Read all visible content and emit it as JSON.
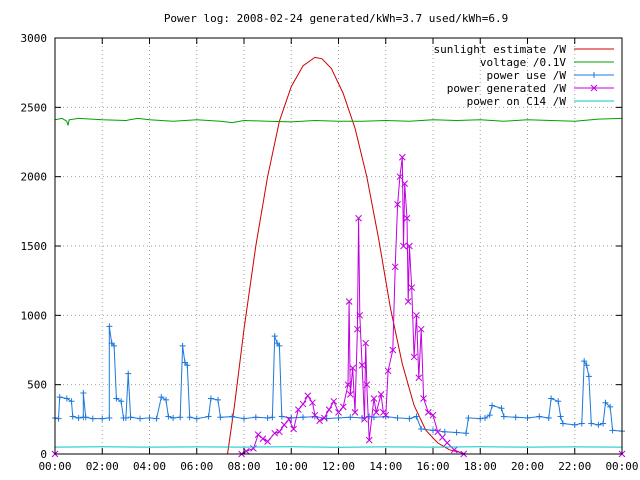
{
  "chart_data": {
    "type": "line",
    "title": "Power log: 2008-02-24 generated/kWh=3.7 used/kWh=6.9",
    "xlabel": "",
    "ylabel": "",
    "x_range_hours": [
      0,
      24
    ],
    "ylim": [
      0,
      3000
    ],
    "x_tick_labels": [
      "00:00",
      "02:00",
      "04:00",
      "06:00",
      "08:00",
      "10:00",
      "12:00",
      "14:00",
      "16:00",
      "18:00",
      "20:00",
      "22:00",
      "00:00"
    ],
    "y_ticks": [
      0,
      500,
      1000,
      1500,
      2000,
      2500,
      3000
    ],
    "grid": true,
    "legend_position": "top-right",
    "series": [
      {
        "name": "sunlight estimate /W",
        "color": "#cc0000",
        "style": "line",
        "points": [
          [
            7.3,
            0
          ],
          [
            7.6,
            350
          ],
          [
            8.0,
            900
          ],
          [
            8.5,
            1500
          ],
          [
            9.0,
            2000
          ],
          [
            9.5,
            2400
          ],
          [
            10.0,
            2650
          ],
          [
            10.5,
            2800
          ],
          [
            11.0,
            2860
          ],
          [
            11.3,
            2850
          ],
          [
            11.7,
            2780
          ],
          [
            12.2,
            2600
          ],
          [
            12.7,
            2350
          ],
          [
            13.2,
            2000
          ],
          [
            13.7,
            1550
          ],
          [
            14.2,
            1050
          ],
          [
            14.7,
            650
          ],
          [
            15.2,
            350
          ],
          [
            15.7,
            170
          ],
          [
            16.2,
            80
          ],
          [
            16.7,
            30
          ],
          [
            17.3,
            5
          ]
        ]
      },
      {
        "name": "voltage /0.1V",
        "color": "#00a000",
        "style": "line",
        "points": [
          [
            0,
            2410
          ],
          [
            0.3,
            2420
          ],
          [
            0.5,
            2400
          ],
          [
            0.55,
            2370
          ],
          [
            0.6,
            2410
          ],
          [
            1,
            2420
          ],
          [
            2,
            2410
          ],
          [
            3,
            2405
          ],
          [
            3.5,
            2420
          ],
          [
            4,
            2410
          ],
          [
            5,
            2400
          ],
          [
            6,
            2410
          ],
          [
            7,
            2400
          ],
          [
            7.5,
            2390
          ],
          [
            8,
            2405
          ],
          [
            9,
            2400
          ],
          [
            10,
            2395
          ],
          [
            11,
            2405
          ],
          [
            12,
            2400
          ],
          [
            13,
            2400
          ],
          [
            14,
            2405
          ],
          [
            15,
            2400
          ],
          [
            16,
            2410
          ],
          [
            17,
            2405
          ],
          [
            18,
            2410
          ],
          [
            19,
            2400
          ],
          [
            20,
            2410
          ],
          [
            21,
            2405
          ],
          [
            22,
            2400
          ],
          [
            23,
            2415
          ],
          [
            24,
            2420
          ]
        ]
      },
      {
        "name": "power use /W",
        "color": "#1e78dc",
        "style": "line+plus",
        "points": [
          [
            0,
            260
          ],
          [
            0.15,
            255
          ],
          [
            0.2,
            410
          ],
          [
            0.5,
            400
          ],
          [
            0.7,
            380
          ],
          [
            0.75,
            270
          ],
          [
            1,
            260
          ],
          [
            1.2,
            265
          ],
          [
            1.2,
            440
          ],
          [
            1.3,
            265
          ],
          [
            1.6,
            255
          ],
          [
            2,
            255
          ],
          [
            2.3,
            260
          ],
          [
            2.3,
            920
          ],
          [
            2.4,
            800
          ],
          [
            2.5,
            780
          ],
          [
            2.6,
            400
          ],
          [
            2.8,
            380
          ],
          [
            2.9,
            260
          ],
          [
            3.0,
            260
          ],
          [
            3.1,
            580
          ],
          [
            3.2,
            265
          ],
          [
            3.6,
            255
          ],
          [
            4.0,
            260
          ],
          [
            4.3,
            255
          ],
          [
            4.5,
            410
          ],
          [
            4.7,
            390
          ],
          [
            4.8,
            270
          ],
          [
            5,
            260
          ],
          [
            5.3,
            265
          ],
          [
            5.4,
            780
          ],
          [
            5.5,
            660
          ],
          [
            5.6,
            640
          ],
          [
            5.7,
            265
          ],
          [
            6,
            255
          ],
          [
            6.5,
            270
          ],
          [
            6.6,
            400
          ],
          [
            6.9,
            390
          ],
          [
            7.0,
            265
          ],
          [
            7.5,
            270
          ],
          [
            8,
            255
          ],
          [
            8.5,
            265
          ],
          [
            9.0,
            260
          ],
          [
            9.2,
            265
          ],
          [
            9.3,
            850
          ],
          [
            9.4,
            800
          ],
          [
            9.5,
            780
          ],
          [
            9.6,
            270
          ],
          [
            10,
            260
          ],
          [
            10.5,
            265
          ],
          [
            11,
            270
          ],
          [
            11.5,
            255
          ],
          [
            12,
            260
          ],
          [
            12.5,
            265
          ],
          [
            13,
            260
          ],
          [
            13.3,
            270
          ],
          [
            13.5,
            265
          ],
          [
            14,
            270
          ],
          [
            14.5,
            260
          ],
          [
            15,
            255
          ],
          [
            15.3,
            270
          ],
          [
            15.5,
            180
          ],
          [
            16,
            170
          ],
          [
            16.5,
            160
          ],
          [
            17.0,
            155
          ],
          [
            17.4,
            150
          ],
          [
            17.5,
            260
          ],
          [
            18,
            255
          ],
          [
            18.2,
            260
          ],
          [
            18.4,
            280
          ],
          [
            18.5,
            350
          ],
          [
            18.9,
            330
          ],
          [
            19.0,
            270
          ],
          [
            19.5,
            265
          ],
          [
            20,
            260
          ],
          [
            20.5,
            270
          ],
          [
            20.9,
            260
          ],
          [
            21,
            400
          ],
          [
            21.3,
            380
          ],
          [
            21.4,
            270
          ],
          [
            21.5,
            220
          ],
          [
            22,
            210
          ],
          [
            22.3,
            220
          ],
          [
            22.4,
            670
          ],
          [
            22.5,
            640
          ],
          [
            22.6,
            560
          ],
          [
            22.7,
            220
          ],
          [
            23,
            210
          ],
          [
            23.2,
            220
          ],
          [
            23.3,
            370
          ],
          [
            23.5,
            340
          ],
          [
            23.6,
            170
          ],
          [
            24,
            165
          ]
        ]
      },
      {
        "name": "power generated /W",
        "color": "#c000e0",
        "style": "line+cross",
        "points": [
          [
            0,
            0
          ],
          [
            7.9,
            0
          ],
          [
            8.1,
            20
          ],
          [
            8.4,
            40
          ],
          [
            8.6,
            140
          ],
          [
            8.8,
            110
          ],
          [
            9.0,
            90
          ],
          [
            9.3,
            150
          ],
          [
            9.5,
            160
          ],
          [
            9.7,
            210
          ],
          [
            9.9,
            250
          ],
          [
            10.1,
            180
          ],
          [
            10.3,
            320
          ],
          [
            10.5,
            360
          ],
          [
            10.7,
            420
          ],
          [
            10.9,
            370
          ],
          [
            11.0,
            280
          ],
          [
            11.2,
            240
          ],
          [
            11.4,
            260
          ],
          [
            11.6,
            320
          ],
          [
            11.8,
            380
          ],
          [
            12.0,
            300
          ],
          [
            12.2,
            340
          ],
          [
            12.4,
            500
          ],
          [
            12.45,
            1100
          ],
          [
            12.5,
            430
          ],
          [
            12.6,
            620
          ],
          [
            12.7,
            300
          ],
          [
            12.8,
            900
          ],
          [
            12.85,
            1700
          ],
          [
            12.9,
            1000
          ],
          [
            13.0,
            640
          ],
          [
            13.1,
            250
          ],
          [
            13.15,
            800
          ],
          [
            13.2,
            500
          ],
          [
            13.3,
            100
          ],
          [
            13.5,
            400
          ],
          [
            13.6,
            300
          ],
          [
            13.8,
            430
          ],
          [
            13.9,
            300
          ],
          [
            14.0,
            280
          ],
          [
            14.1,
            600
          ],
          [
            14.3,
            750
          ],
          [
            14.4,
            1350
          ],
          [
            14.5,
            1800
          ],
          [
            14.6,
            2000
          ],
          [
            14.7,
            2140
          ],
          [
            14.75,
            1500
          ],
          [
            14.8,
            1950
          ],
          [
            14.9,
            1700
          ],
          [
            14.95,
            1100
          ],
          [
            15.0,
            1500
          ],
          [
            15.1,
            1200
          ],
          [
            15.2,
            700
          ],
          [
            15.3,
            1000
          ],
          [
            15.4,
            550
          ],
          [
            15.5,
            900
          ],
          [
            15.6,
            400
          ],
          [
            15.8,
            300
          ],
          [
            16.0,
            280
          ],
          [
            16.2,
            160
          ],
          [
            16.4,
            120
          ],
          [
            16.6,
            80
          ],
          [
            16.9,
            30
          ],
          [
            17.3,
            0
          ],
          [
            24,
            0
          ]
        ]
      },
      {
        "name": "power on C14 /W",
        "color": "#00c8c8",
        "style": "line",
        "points": [
          [
            0,
            50
          ],
          [
            2,
            52
          ],
          [
            4,
            50
          ],
          [
            6,
            51
          ],
          [
            8,
            50
          ],
          [
            10,
            52
          ],
          [
            12,
            49
          ],
          [
            14,
            51
          ],
          [
            16,
            50
          ],
          [
            18,
            52
          ],
          [
            20,
            50
          ],
          [
            22,
            51
          ],
          [
            24,
            50
          ]
        ]
      }
    ]
  }
}
